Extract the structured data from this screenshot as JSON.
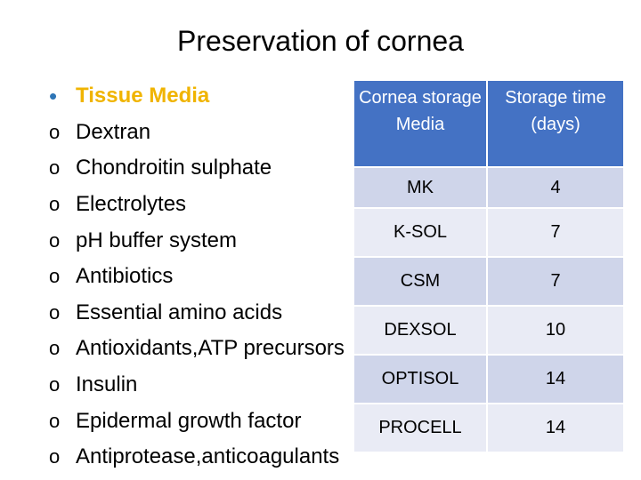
{
  "title": "Preservation of cornea",
  "bullets": {
    "heading": "Tissue Media",
    "items": [
      "Dextran",
      "Chondroitin sulphate",
      "Electrolytes",
      "pH buffer system",
      "Antibiotics",
      "Essential amino acids",
      "Antioxidants,ATP precursors",
      "Insulin",
      "Epidermal growth factor",
      "Antiprotease,anticoagulants"
    ]
  },
  "table": {
    "headers": [
      "Cornea storage Media",
      "Storage time (days)"
    ],
    "rows": [
      [
        "MK",
        "4"
      ],
      [
        "K-SOL",
        "7"
      ],
      [
        "CSM",
        "7"
      ],
      [
        "DEXSOL",
        "10"
      ],
      [
        "OPTISOL",
        "14"
      ],
      [
        "PROCELL",
        "14"
      ]
    ]
  }
}
